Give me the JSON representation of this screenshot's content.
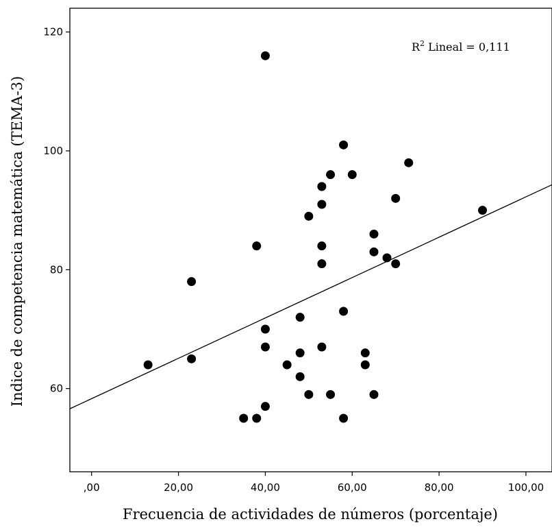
{
  "chart_data": {
    "type": "scatter",
    "xlabel": "Frecuencia de actividades de números (porcentaje)",
    "ylabel": "Indice de competencia matemática (TEMA-3)",
    "xlim": [
      -5,
      106
    ],
    "ylim": [
      46,
      124
    ],
    "x_ticks": [
      0,
      20,
      40,
      60,
      80,
      100
    ],
    "x_tick_labels": [
      ",00",
      "20,00",
      "40,00",
      "60,00",
      "80,00",
      "100,00"
    ],
    "y_ticks": [
      60,
      80,
      100,
      120
    ],
    "y_tick_labels": [
      "60",
      "80",
      "100",
      "120"
    ],
    "grid": false,
    "annotation": {
      "prefix": "R",
      "superscript": "2",
      "text": " Lineal = 0,111",
      "position": "top-right"
    },
    "fit_line": {
      "slope": 0.3396,
      "intercept": 58.3
    },
    "points": [
      {
        "x": 13,
        "y": 64
      },
      {
        "x": 23,
        "y": 78
      },
      {
        "x": 23,
        "y": 65
      },
      {
        "x": 35,
        "y": 55
      },
      {
        "x": 38,
        "y": 55
      },
      {
        "x": 38,
        "y": 84
      },
      {
        "x": 40,
        "y": 116
      },
      {
        "x": 40,
        "y": 70
      },
      {
        "x": 40,
        "y": 67
      },
      {
        "x": 40,
        "y": 57
      },
      {
        "x": 45,
        "y": 64
      },
      {
        "x": 48,
        "y": 72
      },
      {
        "x": 48,
        "y": 66
      },
      {
        "x": 48,
        "y": 62
      },
      {
        "x": 50,
        "y": 89
      },
      {
        "x": 50,
        "y": 59
      },
      {
        "x": 53,
        "y": 94
      },
      {
        "x": 53,
        "y": 91
      },
      {
        "x": 53,
        "y": 84
      },
      {
        "x": 53,
        "y": 81
      },
      {
        "x": 53,
        "y": 67
      },
      {
        "x": 55,
        "y": 96
      },
      {
        "x": 55,
        "y": 59
      },
      {
        "x": 58,
        "y": 101
      },
      {
        "x": 58,
        "y": 73
      },
      {
        "x": 58,
        "y": 55
      },
      {
        "x": 60,
        "y": 96
      },
      {
        "x": 63,
        "y": 66
      },
      {
        "x": 63,
        "y": 64
      },
      {
        "x": 65,
        "y": 86
      },
      {
        "x": 65,
        "y": 83
      },
      {
        "x": 65,
        "y": 59
      },
      {
        "x": 68,
        "y": 82
      },
      {
        "x": 70,
        "y": 92
      },
      {
        "x": 70,
        "y": 81
      },
      {
        "x": 73,
        "y": 98
      },
      {
        "x": 90,
        "y": 90
      }
    ]
  }
}
